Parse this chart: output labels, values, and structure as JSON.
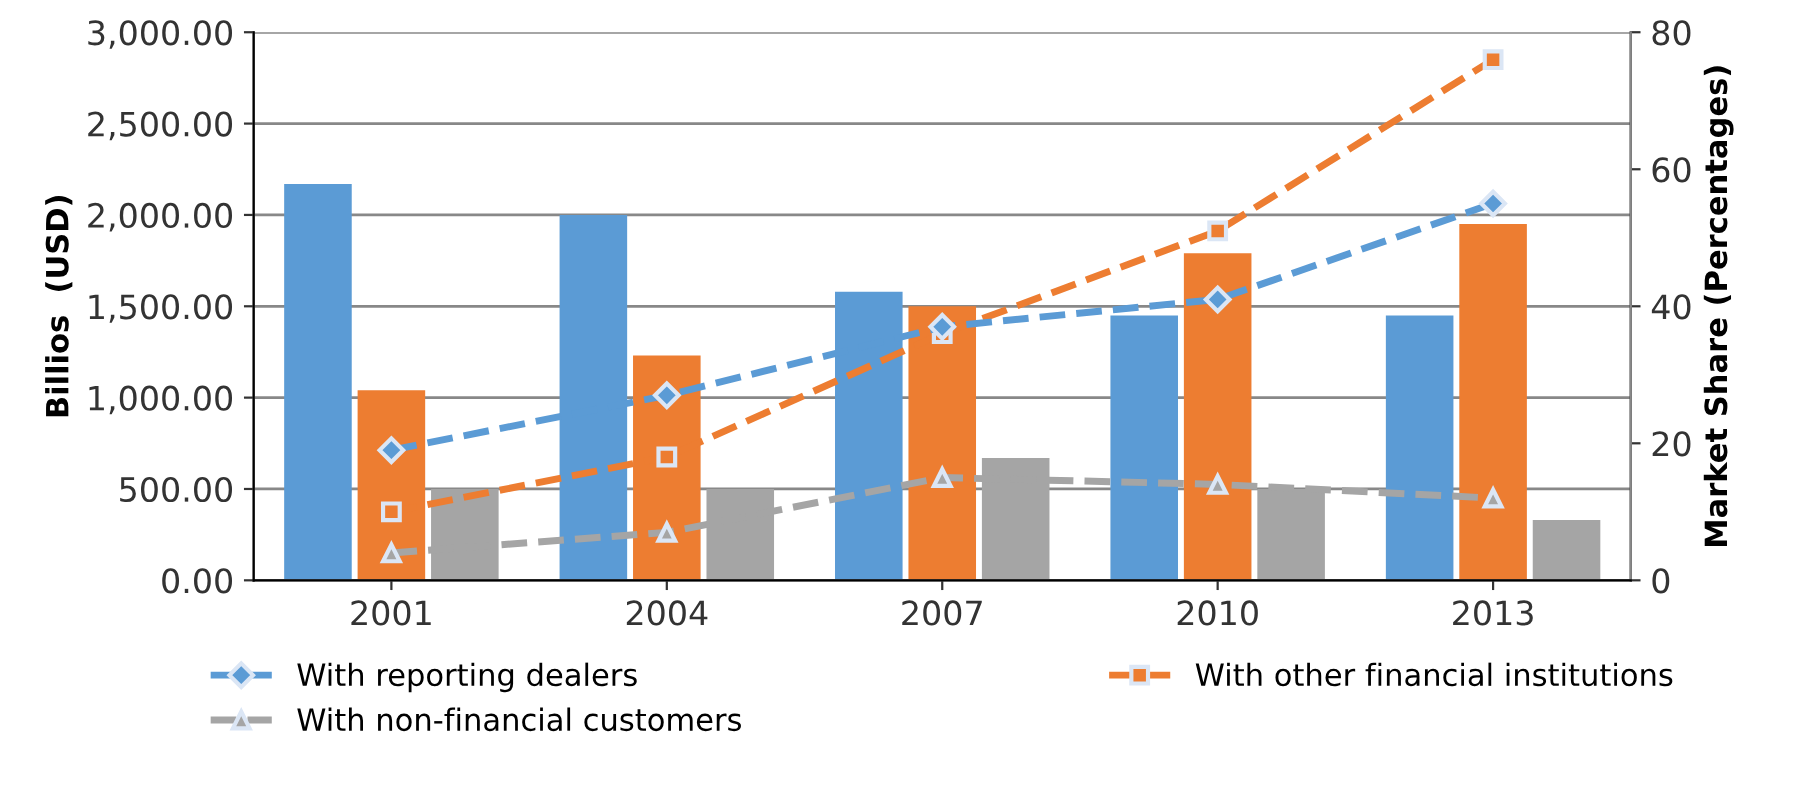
{
  "chart_data": {
    "type": "bar",
    "ylabel": "Billios  (USD)",
    "y2label": "Market Share (Percentages)",
    "categories": [
      "2001",
      "2004",
      "2007",
      "2010",
      "2013"
    ],
    "series": [
      {
        "color": "#5b9bd5",
        "values": [
          2170,
          2000,
          1580,
          1450,
          1450
        ]
      },
      {
        "color": "#ed7d31",
        "values": [
          1040,
          1230,
          1500,
          1790,
          1950
        ]
      },
      {
        "color": "#a5a5a5",
        "values": [
          500,
          500,
          670,
          500,
          330
        ]
      },
      {
        "type": "line",
        "axis": "y2",
        "name": "With reporting dealers",
        "color": "#5b9bd5",
        "marker": "diamond",
        "line_style": "dashed",
        "values": [
          19,
          27,
          37,
          41,
          55
        ]
      },
      {
        "type": "line",
        "axis": "y2",
        "name": "With other financial institutions",
        "color": "#ed7d31",
        "marker": "square",
        "line_style": "dashed",
        "values": [
          10,
          18,
          36,
          51,
          76
        ]
      },
      {
        "type": "line",
        "axis": "y2",
        "name": "With non-financial customers",
        "color": "#a5a5a5",
        "marker": "triangle",
        "line_style": "dashed",
        "values": [
          4,
          7,
          15,
          14,
          12
        ]
      }
    ],
    "ylim": [
      0,
      3000
    ],
    "yticks": [
      {
        "value": 0,
        "label": "0.00"
      },
      {
        "value": 500,
        "label": "500.00"
      },
      {
        "value": 1000,
        "label": "1,000.00"
      },
      {
        "value": 1500,
        "label": "1,500.00"
      },
      {
        "value": 2000,
        "label": "2,000.00"
      },
      {
        "value": 2500,
        "label": "2,500.00"
      },
      {
        "value": 3000,
        "label": "3,000.00"
      }
    ],
    "y2lim": [
      0,
      80
    ],
    "y2ticks": [
      0,
      20,
      40,
      60,
      80
    ],
    "grid": "y",
    "legend": "bottom"
  }
}
